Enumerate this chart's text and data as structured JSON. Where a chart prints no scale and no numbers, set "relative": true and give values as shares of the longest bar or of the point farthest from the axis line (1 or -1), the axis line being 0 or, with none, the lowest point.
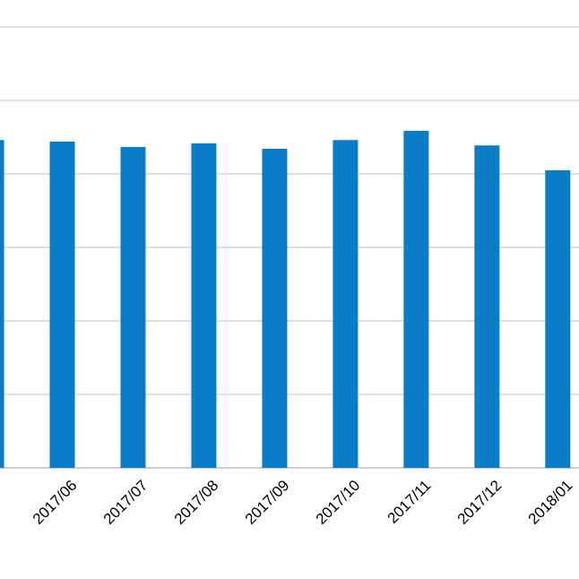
{
  "chart_data": {
    "type": "bar",
    "relative": true,
    "categories": [
      null,
      "2017/06",
      "2017/07",
      "2017/08",
      "2017/09",
      "2017/10",
      "2017/11",
      "2017/12",
      "2018/01"
    ],
    "values": [
      0.973,
      0.968,
      0.952,
      0.963,
      0.947,
      0.973,
      1,
      0.957,
      0.883
    ],
    "color": "#0a7cc8",
    "grid": "y"
  }
}
